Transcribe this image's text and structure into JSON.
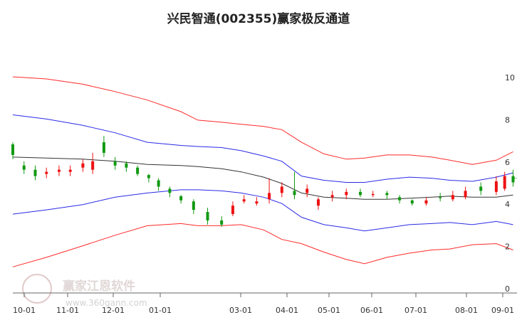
{
  "chart_data": {
    "type": "line",
    "title": "兴民智通(002355)赢家极反通道",
    "x_tick_labels": [
      "10-01",
      "11-01",
      "12-01",
      "01-01",
      "03-01",
      "04-01",
      "05-01",
      "06-01",
      "07-01",
      "08-01",
      "09-01"
    ],
    "y_tick_labels": [
      "0",
      "2",
      "4",
      "6",
      "8",
      "10"
    ],
    "ylim": [
      0,
      10.5
    ],
    "grid": false,
    "colors": {
      "outer_band": "#ff2a2a",
      "inner_band": "#2a2ae6",
      "middle_line": "#333333",
      "candle_up": "#ee1111",
      "candle_down": "#119911",
      "reference_line": "#119911"
    },
    "series": [
      {
        "name": "",
        "role": "outer_upper",
        "values": [
          10.0,
          9.9,
          9.65,
          9.3,
          8.9,
          8.35,
          7.95,
          7.85,
          7.75,
          7.65,
          7.5,
          6.9,
          6.35,
          6.1,
          6.15,
          6.3,
          6.3,
          6.2,
          6.05,
          5.85,
          6.05,
          6.45
        ]
      },
      {
        "name": "",
        "role": "inner_upper",
        "values": [
          8.2,
          8.0,
          7.7,
          7.35,
          6.9,
          6.75,
          6.7,
          6.65,
          6.5,
          6.25,
          6.0,
          5.3,
          5.1,
          5.0,
          5.0,
          5.15,
          5.25,
          5.2,
          5.1,
          5.05,
          5.25,
          5.45
        ]
      },
      {
        "name": "",
        "role": "middle",
        "values": [
          6.2,
          6.15,
          6.1,
          6.0,
          5.85,
          5.8,
          5.75,
          5.65,
          5.5,
          5.25,
          4.95,
          4.5,
          4.3,
          4.25,
          4.2,
          4.2,
          4.25,
          4.3,
          4.35,
          4.3,
          4.3,
          4.4
        ]
      },
      {
        "name": "",
        "role": "inner_lower",
        "values": [
          3.5,
          3.7,
          3.95,
          4.3,
          4.5,
          4.65,
          4.65,
          4.6,
          4.5,
          4.3,
          4.0,
          3.35,
          3.0,
          2.85,
          2.7,
          2.85,
          3.0,
          3.05,
          3.1,
          3.0,
          3.15,
          3.0
        ]
      },
      {
        "name": "",
        "role": "outer_lower",
        "values": [
          1.0,
          1.45,
          2.0,
          2.5,
          2.95,
          3.05,
          2.95,
          2.95,
          3.0,
          2.75,
          2.3,
          2.1,
          1.7,
          1.35,
          1.15,
          1.45,
          1.65,
          1.8,
          1.85,
          2.05,
          2.1,
          1.8
        ]
      }
    ],
    "band_dates": [
      "2017-09-26",
      "2017-10-20",
      "2017-11-15",
      "2017-12-08",
      "2017-12-31",
      "2018-01-24",
      "2018-02-05",
      "2018-02-22",
      "2018-03-08",
      "2018-03-24",
      "2018-04-06",
      "2018-04-20",
      "2018-05-06",
      "2018-05-22",
      "2018-06-04",
      "2018-06-20",
      "2018-07-06",
      "2018-07-22",
      "2018-08-04",
      "2018-08-20",
      "2018-09-06",
      "2018-09-18"
    ],
    "candles": {
      "dates": [
        "2017-09-26",
        "2017-10-04",
        "2017-10-12",
        "2017-10-20",
        "2017-10-29",
        "2017-11-06",
        "2017-11-15",
        "2017-11-22",
        "2017-11-30",
        "2017-12-08",
        "2017-12-16",
        "2017-12-24",
        "2018-01-01",
        "2018-01-08",
        "2018-01-16",
        "2018-01-24",
        "2018-02-02",
        "2018-02-12",
        "2018-02-22",
        "2018-03-02",
        "2018-03-10",
        "2018-03-19",
        "2018-03-28",
        "2018-04-06",
        "2018-04-15",
        "2018-04-24",
        "2018-05-02",
        "2018-05-12",
        "2018-05-22",
        "2018-06-01",
        "2018-06-10",
        "2018-06-20",
        "2018-06-29",
        "2018-07-08",
        "2018-07-18",
        "2018-07-28",
        "2018-08-06",
        "2018-08-15",
        "2018-08-26",
        "2018-09-06",
        "2018-09-12",
        "2018-09-18"
      ],
      "open": [
        6.8,
        5.8,
        5.6,
        5.4,
        5.5,
        5.5,
        5.7,
        5.6,
        6.9,
        6.0,
        5.9,
        5.7,
        5.35,
        5.1,
        4.7,
        4.35,
        4.1,
        3.6,
        3.2,
        3.5,
        4.1,
        4.0,
        4.2,
        4.5,
        4.6,
        4.5,
        3.9,
        4.3,
        4.4,
        4.55,
        4.4,
        4.5,
        4.3,
        4.15,
        4.0,
        4.3,
        4.2,
        4.3,
        4.8,
        4.55,
        4.7,
        5.3
      ],
      "close": [
        6.3,
        5.6,
        5.3,
        5.5,
        5.6,
        5.6,
        5.9,
        6.0,
        6.4,
        5.8,
        5.7,
        5.4,
        5.2,
        4.8,
        4.5,
        4.15,
        3.7,
        3.2,
        3.0,
        3.9,
        4.2,
        4.1,
        4.5,
        4.8,
        4.4,
        4.7,
        4.2,
        4.4,
        4.55,
        4.4,
        4.45,
        4.4,
        4.15,
        4.0,
        4.15,
        4.25,
        4.4,
        4.6,
        4.6,
        5.05,
        5.3,
        5.0
      ],
      "high": [
        6.9,
        6.0,
        5.8,
        5.7,
        5.8,
        5.8,
        6.1,
        6.4,
        7.2,
        6.2,
        6.0,
        5.8,
        5.4,
        5.2,
        4.8,
        4.4,
        4.2,
        3.8,
        3.4,
        4.1,
        4.4,
        4.3,
        5.2,
        5.0,
        5.5,
        4.9,
        4.3,
        4.6,
        4.7,
        4.7,
        4.6,
        4.6,
        4.4,
        4.2,
        4.3,
        4.5,
        4.6,
        4.8,
        5.0,
        5.3,
        5.5,
        5.6
      ],
      "low": [
        6.1,
        5.4,
        5.1,
        5.2,
        5.3,
        5.3,
        5.5,
        5.4,
        6.2,
        5.6,
        5.5,
        5.3,
        5.0,
        4.6,
        4.3,
        4.0,
        3.5,
        3.0,
        2.9,
        3.4,
        4.0,
        3.9,
        4.0,
        4.3,
        4.2,
        4.3,
        3.7,
        4.1,
        4.2,
        4.3,
        4.3,
        4.2,
        4.0,
        3.9,
        3.9,
        4.1,
        4.1,
        4.2,
        4.4,
        4.4,
        4.6,
        4.8
      ]
    },
    "reference_line": {
      "value": 5.2,
      "from": "2018-09-18",
      "to": "2018-10-06"
    }
  },
  "watermark": {
    "text": "赢家江恩软件",
    "url": "www.360gann.com"
  }
}
